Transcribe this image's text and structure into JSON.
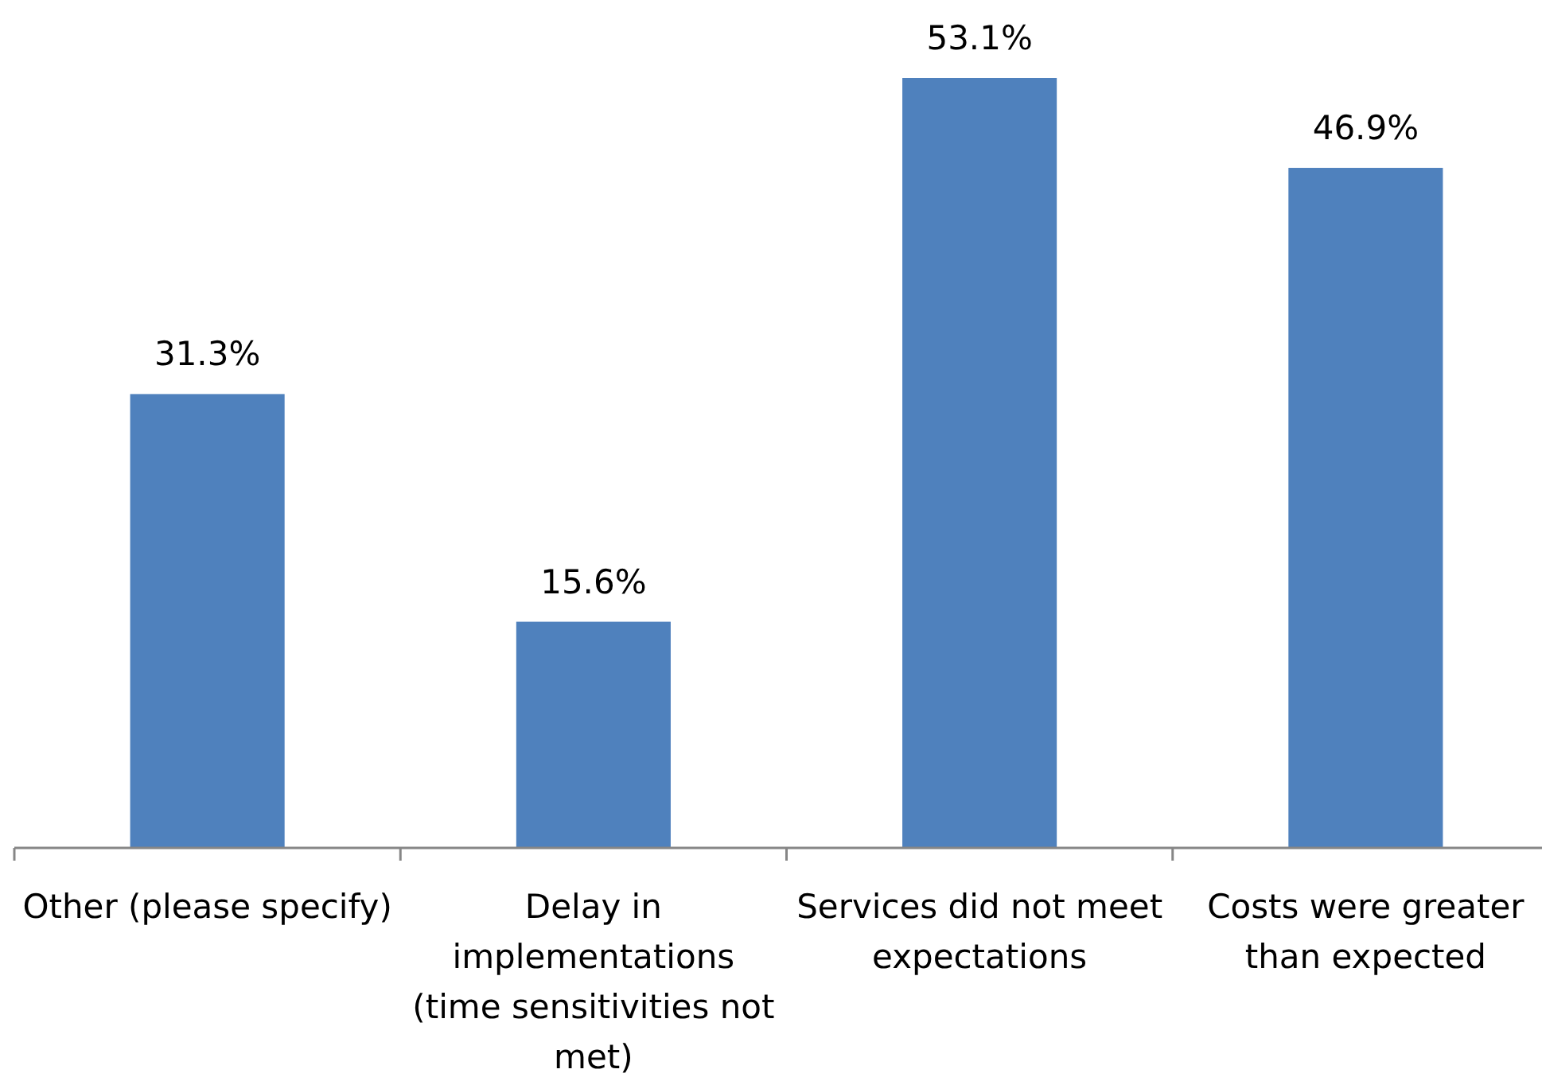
{
  "chart_data": {
    "type": "bar",
    "categories": [
      "Other (please specify)",
      "Delay in implementations (time sensitivities not met)",
      "Services did not meet expectations",
      "Costs were greater than expected"
    ],
    "values": [
      31.3,
      15.6,
      53.1,
      46.9
    ],
    "color": "#4f81bd",
    "value_labels": [
      "31.3%",
      "15.6%",
      "53.1%",
      "46.9%"
    ]
  }
}
